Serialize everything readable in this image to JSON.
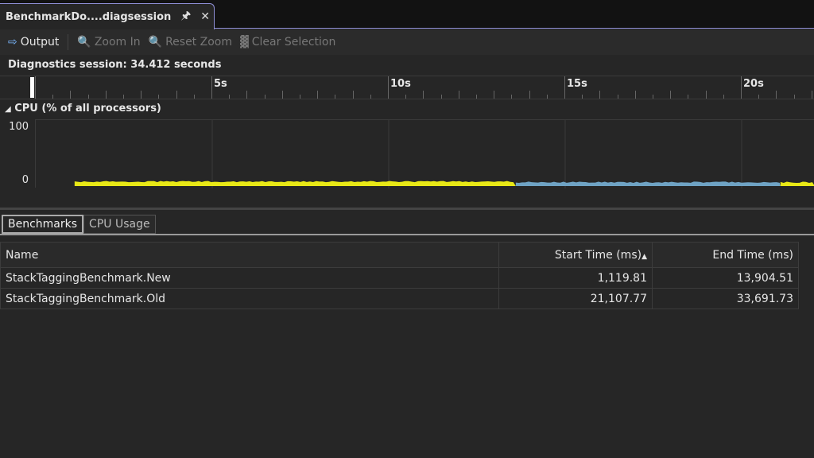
{
  "tab": {
    "title": "BenchmarkDo....diagsession",
    "pin_icon": "pin-icon",
    "close_icon": "close-icon"
  },
  "toolbar": {
    "output": "Output",
    "zoom_in": "Zoom In",
    "reset_zoom": "Reset Zoom",
    "clear_selection": "Clear Selection"
  },
  "session": "Diagnostics session: 34.412 seconds",
  "ruler": {
    "labels": [
      "5s",
      "10s",
      "15s",
      "20s"
    ]
  },
  "cpu": {
    "header": "CPU (% of all processors)",
    "y_max": "100",
    "y_min": "0",
    "colors": {
      "new": "#e8e816",
      "old": "#6fa3c4"
    },
    "segments": [
      {
        "start_s": 1.1,
        "end_s": 13.6,
        "color": "#e8e816",
        "level": 6
      },
      {
        "start_s": 13.6,
        "end_s": 21.1,
        "color": "#6fa3c4",
        "level": 5
      },
      {
        "start_s": 21.1,
        "end_s": 23.0,
        "color": "#e8e816",
        "level": 5
      }
    ]
  },
  "bottom_tabs": [
    "Benchmarks",
    "CPU Usage"
  ],
  "table": {
    "columns": [
      "Name",
      "Start Time (ms)",
      "End Time (ms)"
    ],
    "rows": [
      [
        "StackTaggingBenchmark.New",
        "1,119.81",
        "13,904.51"
      ],
      [
        "StackTaggingBenchmark.Old",
        "21,107.77",
        "33,691.73"
      ]
    ]
  }
}
